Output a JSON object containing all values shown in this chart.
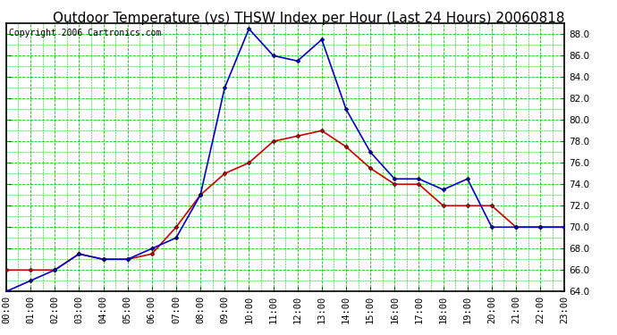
{
  "title": "Outdoor Temperature (vs) THSW Index per Hour (Last 24 Hours) 20060818",
  "copyright": "Copyright 2006 Cartronics.com",
  "hours": [
    "00:00",
    "01:00",
    "02:00",
    "03:00",
    "04:00",
    "05:00",
    "06:00",
    "07:00",
    "08:00",
    "09:00",
    "10:00",
    "11:00",
    "12:00",
    "13:00",
    "14:00",
    "15:00",
    "16:00",
    "17:00",
    "18:00",
    "19:00",
    "20:00",
    "21:00",
    "22:00",
    "23:00"
  ],
  "temp": [
    66.0,
    66.0,
    66.0,
    67.5,
    67.0,
    67.0,
    67.5,
    70.0,
    73.0,
    75.0,
    76.0,
    78.0,
    78.5,
    79.0,
    77.5,
    75.5,
    74.0,
    74.0,
    72.0,
    72.0,
    72.0,
    70.0,
    70.0,
    70.0
  ],
  "thsw": [
    64.0,
    65.0,
    66.0,
    67.5,
    67.0,
    67.0,
    68.0,
    69.0,
    73.0,
    83.0,
    88.5,
    86.0,
    85.5,
    87.5,
    81.0,
    77.0,
    74.5,
    74.5,
    73.5,
    74.5,
    70.0,
    70.0,
    70.0,
    70.0
  ],
  "temp_color": "#cc0000",
  "thsw_color": "#0000cc",
  "bg_color": "#ffffff",
  "grid_color": "#00cc00",
  "ylim": [
    64.0,
    89.0
  ],
  "yticks": [
    64.0,
    66.0,
    68.0,
    70.0,
    72.0,
    74.0,
    76.0,
    78.0,
    80.0,
    82.0,
    84.0,
    86.0,
    88.0
  ],
  "title_fontsize": 11,
  "copyright_fontsize": 7,
  "tick_fontsize": 7.5,
  "marker": "D",
  "marker_size": 2.5,
  "line_width": 1.2
}
